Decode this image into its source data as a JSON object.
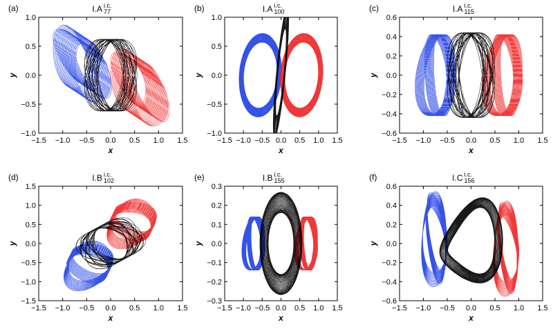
{
  "figure": {
    "colors": {
      "blue": "#1f3fe6",
      "red": "#ee2222",
      "black": "#000000"
    },
    "panels": [
      {
        "id": "a",
        "label": "(a)",
        "title": {
          "base": "I.A",
          "sup": "i.c.",
          "sub": "77"
        },
        "xlabel": "x",
        "ylabel": "y"
      },
      {
        "id": "b",
        "label": "(b)",
        "title": {
          "base": "I.A",
          "sup": "i.c.",
          "sub": "100"
        },
        "xlabel": "x",
        "ylabel": "y"
      },
      {
        "id": "c",
        "label": "(c)",
        "title": {
          "base": "I.A",
          "sup": "i.c.",
          "sub": "115"
        },
        "xlabel": "x",
        "ylabel": "y"
      },
      {
        "id": "d",
        "label": "(d)",
        "title": {
          "base": "I.B",
          "sup": "i.c.",
          "sub": "102"
        },
        "xlabel": "x",
        "ylabel": "y"
      },
      {
        "id": "e",
        "label": "(e)",
        "title": {
          "base": "I.B",
          "sup": "i.c.",
          "sub": "155"
        },
        "xlabel": "x",
        "ylabel": "y"
      },
      {
        "id": "f",
        "label": "(f)",
        "title": {
          "base": "I.C",
          "sup": "i.c.",
          "sub": "156"
        },
        "xlabel": "x",
        "ylabel": "y"
      }
    ]
  },
  "chart_data": [
    {
      "type": "line",
      "panel": "a",
      "xlim": [
        -1.5,
        1.5
      ],
      "ylim": [
        -1.0,
        1.0
      ],
      "xticks": [
        "−1.5",
        "−1.0",
        "−0.5",
        "0.0",
        "0.5",
        "1.0",
        "1.5"
      ],
      "yticks": [
        "−1.0",
        "−0.5",
        "0.0",
        "0.5",
        "1.0"
      ],
      "series": [
        {
          "color": "blue",
          "curve": {
            "kind": "lobe",
            "cx": -0.6,
            "cy": 0.2,
            "a": 0.3,
            "b": 0.55,
            "rot": 0.5,
            "loops": 36,
            "wob": 0.25,
            "drift": 0.28,
            "driftAng": -1.0
          }
        },
        {
          "color": "red",
          "curve": {
            "kind": "lobe",
            "cx": 0.6,
            "cy": -0.2,
            "a": 0.3,
            "b": 0.55,
            "rot": 0.5,
            "loops": 36,
            "wob": 0.25,
            "drift": 0.28,
            "driftAng": -1.0
          }
        },
        {
          "color": "black",
          "curve": {
            "kind": "rosette",
            "cx": 0.0,
            "cy": 0.0,
            "a": 0.55,
            "b": 0.62,
            "rot": 0.0,
            "loops": 26,
            "k": 4
          }
        }
      ]
    },
    {
      "type": "line",
      "panel": "b",
      "xlim": [
        -1.5,
        1.5
      ],
      "ylim": [
        -1.0,
        1.0
      ],
      "xticks": [
        "−1.5",
        "−1.0",
        "−0.5",
        "0.0",
        "0.5",
        "1.0",
        "1.5"
      ],
      "yticks": [
        "−1.0",
        "−0.5",
        "0.0",
        "0.5",
        "1.0"
      ],
      "series": [
        {
          "color": "blue",
          "curve": {
            "kind": "band",
            "cx": -0.55,
            "cy": 0.0,
            "a": 0.5,
            "b": 0.65,
            "rot": -0.2,
            "loops": 40,
            "spread": 0.12
          }
        },
        {
          "color": "red",
          "curve": {
            "kind": "band",
            "cx": 0.55,
            "cy": 0.0,
            "a": 0.5,
            "b": 0.65,
            "rot": -0.2,
            "loops": 40,
            "spread": 0.12
          }
        },
        {
          "color": "black",
          "curve": {
            "kind": "band",
            "cx": 0.0,
            "cy": 0.05,
            "a": 0.1,
            "b": 0.95,
            "rot": -0.15,
            "loops": 40,
            "spread": 0.2
          }
        }
      ]
    },
    {
      "type": "line",
      "panel": "c",
      "xlim": [
        -1.5,
        1.5
      ],
      "ylim": [
        -0.6,
        0.6
      ],
      "xticks": [
        "−1.5",
        "−1.0",
        "−0.5",
        "0.0",
        "0.5",
        "1.0",
        "1.5"
      ],
      "yticks": [
        "−0.6",
        "−0.4",
        "−0.2",
        "0.0",
        "0.2",
        "0.4",
        "0.6"
      ],
      "series": [
        {
          "color": "blue",
          "curve": {
            "kind": "lobe",
            "cx": -0.7,
            "cy": 0.0,
            "a": 0.28,
            "b": 0.42,
            "rot": 0.0,
            "loops": 30,
            "wob": 0.35,
            "drift": 0.1,
            "driftAng": 0.0
          }
        },
        {
          "color": "red",
          "curve": {
            "kind": "lobe",
            "cx": 0.7,
            "cy": 0.0,
            "a": 0.28,
            "b": 0.42,
            "rot": 0.0,
            "loops": 30,
            "wob": 0.35,
            "drift": 0.1,
            "driftAng": 0.0
          }
        },
        {
          "color": "black",
          "curve": {
            "kind": "rosette",
            "cx": 0.0,
            "cy": 0.0,
            "a": 0.5,
            "b": 0.44,
            "rot": 0.0,
            "loops": 28,
            "k": 5
          }
        }
      ]
    },
    {
      "type": "line",
      "panel": "d",
      "xlim": [
        -1.5,
        1.5
      ],
      "ylim": [
        -1.5,
        1.5
      ],
      "xticks": [
        "−1.5",
        "−1.0",
        "−0.5",
        "0.0",
        "0.5",
        "1.0",
        "1.5"
      ],
      "yticks": [
        "−1.5",
        "−1.0",
        "−0.5",
        "0.0",
        "0.5",
        "1.0",
        "1.5"
      ],
      "series": [
        {
          "color": "blue",
          "curve": {
            "kind": "lobe",
            "cx": -0.45,
            "cy": -0.55,
            "a": 0.45,
            "b": 0.45,
            "rot": 0.6,
            "loops": 32,
            "wob": 0.3,
            "drift": 0.15,
            "driftAng": 0.6
          }
        },
        {
          "color": "red",
          "curve": {
            "kind": "lobe",
            "cx": 0.45,
            "cy": 0.55,
            "a": 0.45,
            "b": 0.45,
            "rot": 0.6,
            "loops": 32,
            "wob": 0.3,
            "drift": 0.15,
            "driftAng": 0.6
          }
        },
        {
          "color": "black",
          "curve": {
            "kind": "rosette",
            "cx": 0.0,
            "cy": 0.0,
            "a": 0.7,
            "b": 0.5,
            "rot": 0.6,
            "loops": 28,
            "k": 3
          }
        }
      ]
    },
    {
      "type": "line",
      "panel": "e",
      "xlim": [
        -1.5,
        1.5
      ],
      "ylim": [
        -0.3,
        0.3
      ],
      "xticks": [
        "−1.5",
        "−1.0",
        "−0.5",
        "0.0",
        "0.5",
        "1.0",
        "1.5"
      ],
      "yticks": [
        "−0.3",
        "−0.2",
        "−0.1",
        "0.0",
        "0.1",
        "0.2",
        "0.3"
      ],
      "series": [
        {
          "color": "blue",
          "curve": {
            "kind": "lobe",
            "cx": -0.7,
            "cy": 0.0,
            "a": 0.22,
            "b": 0.14,
            "rot": 0.0,
            "loops": 30,
            "wob": 0.3,
            "drift": 0.06,
            "driftAng": 0.0
          }
        },
        {
          "color": "red",
          "curve": {
            "kind": "lobe",
            "cx": 0.7,
            "cy": 0.0,
            "a": 0.22,
            "b": 0.14,
            "rot": 0.0,
            "loops": 30,
            "wob": 0.3,
            "drift": 0.06,
            "driftAng": 0.0
          }
        },
        {
          "color": "black",
          "curve": {
            "kind": "band",
            "cx": 0.0,
            "cy": 0.0,
            "a": 0.45,
            "b": 0.215,
            "rot": 0.0,
            "loops": 45,
            "spread": 0.25
          }
        }
      ]
    },
    {
      "type": "line",
      "panel": "f",
      "xlim": [
        -1.5,
        1.5
      ],
      "ylim": [
        -0.6,
        0.6
      ],
      "xticks": [
        "−1.5",
        "−1.0",
        "−0.5",
        "0.0",
        "0.5",
        "1.0",
        "1.5"
      ],
      "yticks": [
        "−0.6",
        "−0.4",
        "−0.2",
        "0.0",
        "0.2",
        "0.4",
        "0.6"
      ],
      "series": [
        {
          "color": "blue",
          "curve": {
            "kind": "lobe",
            "cx": -0.75,
            "cy": 0.05,
            "a": 0.22,
            "b": 0.42,
            "rot": 0.2,
            "loops": 32,
            "wob": 0.35,
            "drift": 0.08,
            "driftAng": 1.2
          }
        },
        {
          "color": "red",
          "curve": {
            "kind": "lobe",
            "cx": 0.75,
            "cy": -0.05,
            "a": 0.22,
            "b": 0.42,
            "rot": 0.2,
            "loops": 32,
            "wob": 0.35,
            "drift": 0.08,
            "driftAng": 1.2
          }
        },
        {
          "color": "black",
          "curve": {
            "kind": "band",
            "cx": 0.0,
            "cy": 0.0,
            "a": 0.58,
            "b": 0.36,
            "rot": 0.15,
            "loops": 40,
            "spread": 0.15,
            "twist": true
          }
        }
      ]
    }
  ]
}
